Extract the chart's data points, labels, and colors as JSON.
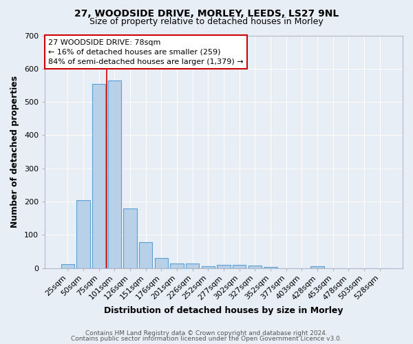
{
  "title": "27, WOODSIDE DRIVE, MORLEY, LEEDS, LS27 9NL",
  "subtitle": "Size of property relative to detached houses in Morley",
  "xlabel": "Distribution of detached houses by size in Morley",
  "ylabel": "Number of detached properties",
  "footnote1": "Contains HM Land Registry data © Crown copyright and database right 2024.",
  "footnote2": "Contains public sector information licensed under the Open Government Licence v3.0.",
  "bar_labels": [
    "25sqm",
    "50sqm",
    "75sqm",
    "101sqm",
    "126sqm",
    "151sqm",
    "176sqm",
    "201sqm",
    "226sqm",
    "252sqm",
    "277sqm",
    "302sqm",
    "327sqm",
    "352sqm",
    "377sqm",
    "403sqm",
    "428sqm",
    "453sqm",
    "478sqm",
    "503sqm",
    "528sqm"
  ],
  "bar_values": [
    12,
    205,
    555,
    565,
    180,
    78,
    30,
    14,
    13,
    6,
    10,
    10,
    8,
    4,
    0,
    0,
    5,
    0,
    0,
    0,
    0
  ],
  "bar_color": "#b8d0e8",
  "bar_edge_color": "#5a9fd4",
  "bg_color": "#e8eef5",
  "grid_color": "#ffffff",
  "property_line_color": "#cc0000",
  "annotation_text": "27 WOODSIDE DRIVE: 78sqm\n← 16% of detached houses are smaller (259)\n84% of semi-detached houses are larger (1,379) →",
  "annotation_box_color": "#ffffff",
  "annotation_box_edge": "#cc0000",
  "ylim": [
    0,
    700
  ],
  "yticks": [
    0,
    100,
    200,
    300,
    400,
    500,
    600,
    700
  ],
  "title_fontsize": 10,
  "subtitle_fontsize": 9,
  "xlabel_fontsize": 9,
  "ylabel_fontsize": 9,
  "tick_fontsize": 8,
  "annot_fontsize": 8,
  "footnote_fontsize": 6.5
}
